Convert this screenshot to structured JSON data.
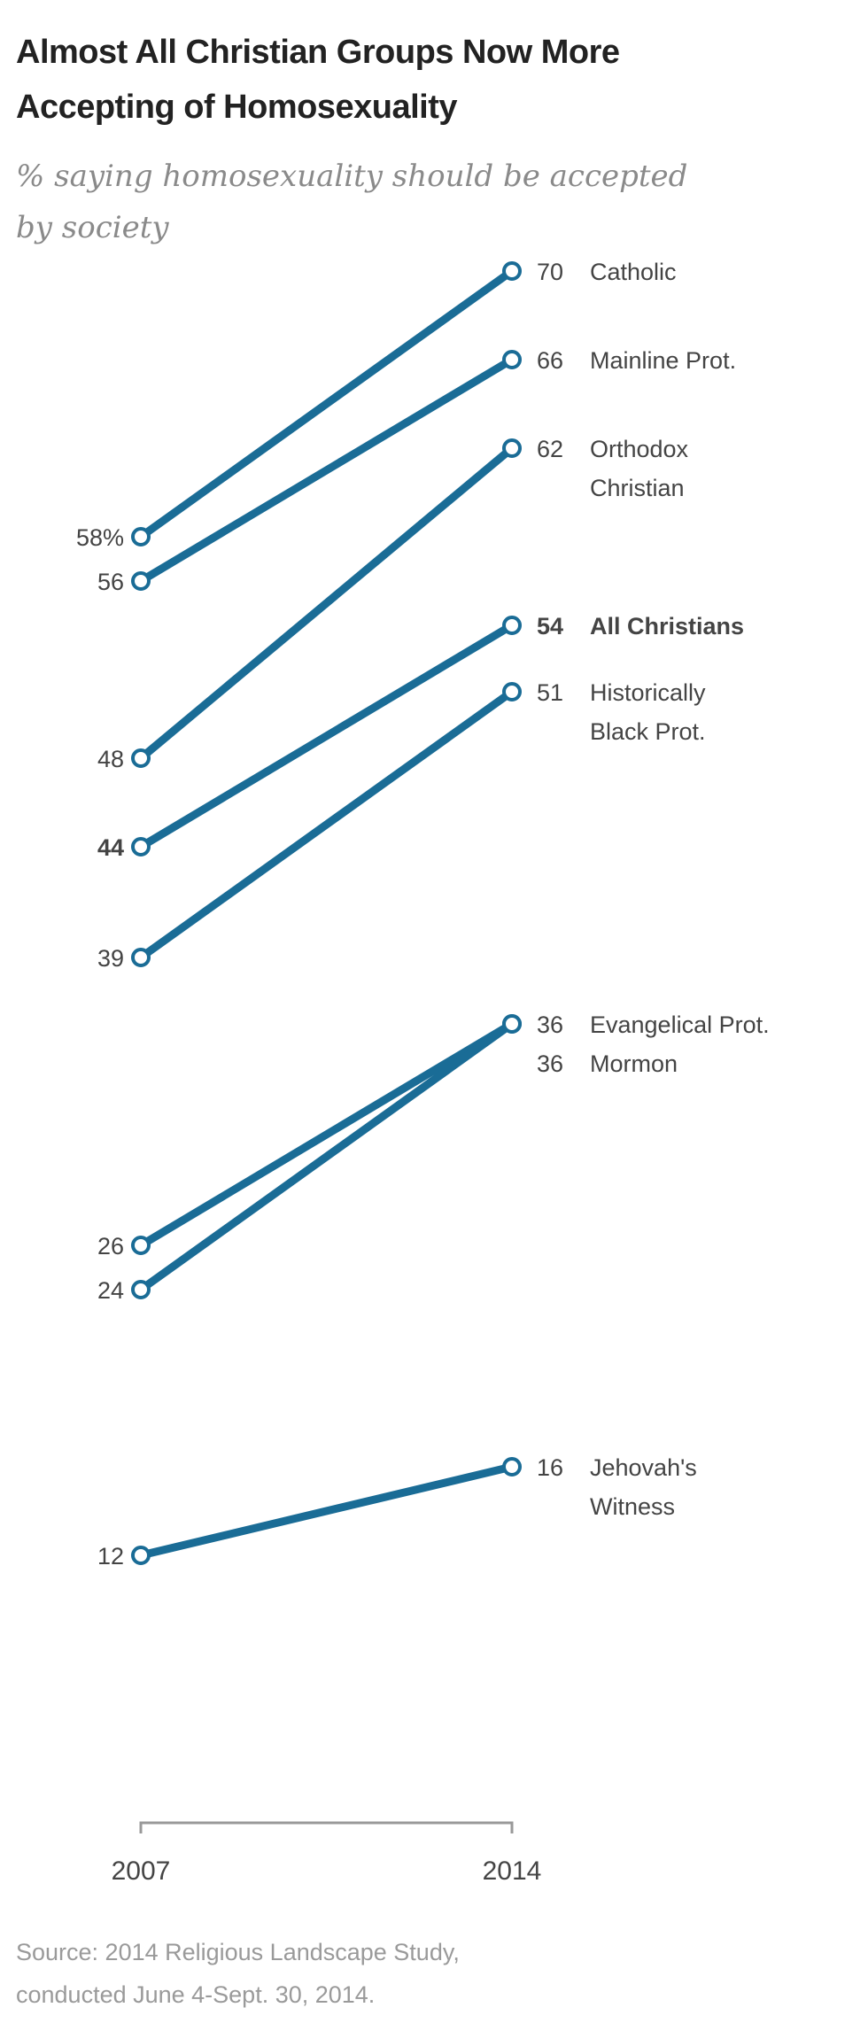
{
  "header": {
    "title_line1": "Almost All Christian Groups Now More",
    "title_line2": "Accepting of Homosexuality",
    "subtitle_line1": "% saying homosexuality should be accepted",
    "subtitle_line2": "by society"
  },
  "chart_data": {
    "type": "line",
    "title": "Almost All Christian Groups Now More Accepting of Homosexuality",
    "subtitle": "% saying homosexuality should be accepted by society",
    "x": [
      "2007",
      "2014"
    ],
    "series": [
      {
        "name": "Catholic",
        "label_lines": [
          "Catholic"
        ],
        "values": [
          58,
          70
        ],
        "left_label": "58%",
        "bold": false
      },
      {
        "name": "Mainline Prot.",
        "label_lines": [
          "Mainline Prot."
        ],
        "values": [
          56,
          66
        ],
        "left_label": "56",
        "bold": false
      },
      {
        "name": "Orthodox Christian",
        "label_lines": [
          "Orthodox",
          "Christian"
        ],
        "values": [
          48,
          62
        ],
        "left_label": "48",
        "bold": false
      },
      {
        "name": "All Christians",
        "label_lines": [
          "All Christians"
        ],
        "values": [
          44,
          54
        ],
        "left_label": "44",
        "bold": true
      },
      {
        "name": "Historically Black Prot.",
        "label_lines": [
          "Historically",
          "Black Prot."
        ],
        "values": [
          39,
          51
        ],
        "left_label": "39",
        "bold": false
      },
      {
        "name": "Evangelical Prot.",
        "label_lines": [
          "Evangelical Prot."
        ],
        "values": [
          26,
          36
        ],
        "left_label": "26",
        "bold": false
      },
      {
        "name": "Mormon",
        "label_lines": [
          "Mormon"
        ],
        "values": [
          24,
          36
        ],
        "left_label": "24",
        "bold": false
      },
      {
        "name": "Jehovah's Witness",
        "label_lines": [
          "Jehovah's",
          "Witness"
        ],
        "values": [
          12,
          16
        ],
        "left_label": "12",
        "bold": false
      }
    ],
    "ylim": [
      12,
      70
    ],
    "xlabel": "",
    "ylabel": "",
    "line_color": "#1a6c96",
    "grid": false
  },
  "footer": {
    "source_line1": "Source: 2014 Religious Landscape Study,",
    "source_line2": "conducted June 4-Sept. 30, 2014."
  }
}
